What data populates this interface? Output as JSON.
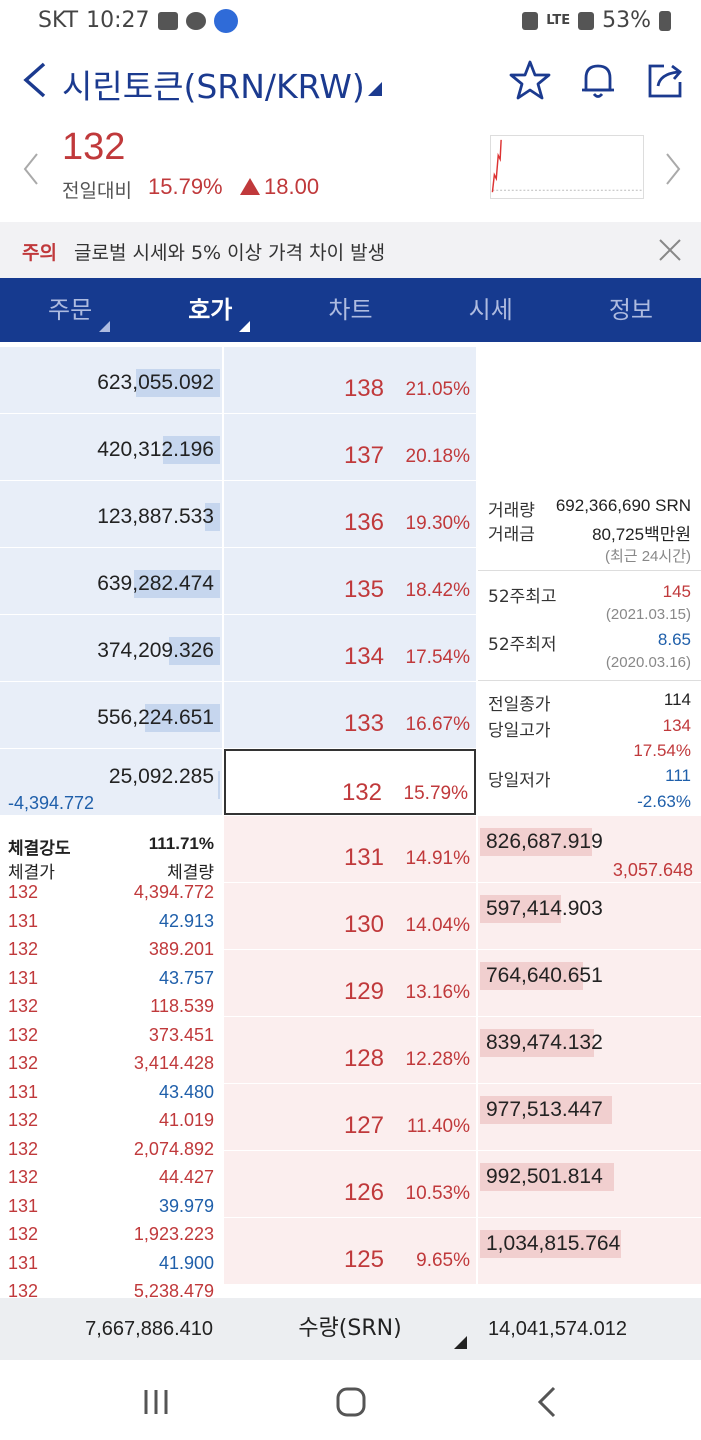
{
  "status_bar": {
    "carrier": "SKT",
    "time": "10:27",
    "network": "LTE",
    "battery": "53%"
  },
  "header": {
    "title": "시린토큰(SRN/KRW)"
  },
  "summary": {
    "price": "132",
    "prev_label": "전일대비",
    "change_pct": "15.79%",
    "change_abs": "18.00"
  },
  "warning": {
    "tag": "주의",
    "text": "글로벌 시세와 5% 이상 가격 차이 발생"
  },
  "tabs": [
    {
      "label": "주문"
    },
    {
      "label": "호가"
    },
    {
      "label": "차트"
    },
    {
      "label": "시세"
    },
    {
      "label": "정보"
    }
  ],
  "asks": [
    {
      "volume": "623,055.092",
      "price": "138",
      "pct": "21.05%",
      "bar": 0.38
    },
    {
      "volume": "420,312.196",
      "price": "137",
      "pct": "20.18%",
      "bar": 0.26
    },
    {
      "volume": "123,887.533",
      "price": "136",
      "pct": "19.30%",
      "bar": 0.07
    },
    {
      "volume": "639,282.474",
      "price": "135",
      "pct": "18.42%",
      "bar": 0.39
    },
    {
      "volume": "374,209.326",
      "price": "134",
      "pct": "17.54%",
      "bar": 0.23
    },
    {
      "volume": "556,224.651",
      "price": "133",
      "pct": "16.67%",
      "bar": 0.34
    },
    {
      "volume": "25,092.285",
      "price": "132",
      "pct": "15.79%",
      "bar": 0.01,
      "change": "-4,394.772"
    }
  ],
  "bids": [
    {
      "volume": "826,687.919",
      "price": "131",
      "pct": "14.91%",
      "bar": 0.51,
      "change": "3,057.648"
    },
    {
      "volume": "597,414.903",
      "price": "130",
      "pct": "14.04%",
      "bar": 0.37
    },
    {
      "volume": "764,640.651",
      "price": "129",
      "pct": "13.16%",
      "bar": 0.47
    },
    {
      "volume": "839,474.132",
      "price": "128",
      "pct": "12.28%",
      "bar": 0.52
    },
    {
      "volume": "977,513.447",
      "price": "127",
      "pct": "11.40%",
      "bar": 0.6
    },
    {
      "volume": "992,501.814",
      "price": "126",
      "pct": "10.53%",
      "bar": 0.61
    },
    {
      "volume": "1,034,815.764",
      "price": "125",
      "pct": "9.65%",
      "bar": 0.64
    }
  ],
  "info": {
    "volume_label": "거래량",
    "volume_value": "692,366,690 SRN",
    "amount_label": "거래금",
    "amount_value": "80,725백만원",
    "period_note": "(최근 24시간)",
    "high52_label": "52주최고",
    "high52_value": "145",
    "high52_date": "(2021.03.15)",
    "low52_label": "52주최저",
    "low52_value": "8.65",
    "low52_date": "(2020.03.16)",
    "prev_close_label": "전일종가",
    "prev_close_value": "114",
    "day_high_label": "당일고가",
    "day_high_value": "134",
    "day_high_pct": "17.54%",
    "day_low_label": "당일저가",
    "day_low_value": "111",
    "day_low_pct": "-2.63%"
  },
  "trades": {
    "strength_label": "체결강도",
    "strength_value": "111.71%",
    "price_header": "체결가",
    "qty_header": "체결량",
    "rows": [
      {
        "price": "132",
        "qty": "4,394.772",
        "side": "buy"
      },
      {
        "price": "131",
        "qty": "42.913",
        "side": "sell"
      },
      {
        "price": "132",
        "qty": "389.201",
        "side": "buy"
      },
      {
        "price": "131",
        "qty": "43.757",
        "side": "sell"
      },
      {
        "price": "132",
        "qty": "118.539",
        "side": "buy"
      },
      {
        "price": "132",
        "qty": "373.451",
        "side": "buy"
      },
      {
        "price": "132",
        "qty": "3,414.428",
        "side": "buy"
      },
      {
        "price": "131",
        "qty": "43.480",
        "side": "sell"
      },
      {
        "price": "132",
        "qty": "41.019",
        "side": "buy"
      },
      {
        "price": "132",
        "qty": "2,074.892",
        "side": "buy"
      },
      {
        "price": "132",
        "qty": "44.427",
        "side": "buy"
      },
      {
        "price": "131",
        "qty": "39.979",
        "side": "sell"
      },
      {
        "price": "132",
        "qty": "1,923.223",
        "side": "buy"
      },
      {
        "price": "131",
        "qty": "41.900",
        "side": "sell"
      },
      {
        "price": "132",
        "qty": "5,238.479",
        "side": "buy"
      }
    ]
  },
  "totals": {
    "ask_total": "7,667,886.410",
    "qty_label": "수량(SRN)",
    "bid_total": "14,041,574.012"
  },
  "colors": {
    "up": "#c0393b",
    "down": "#1f5faa",
    "tab_bg": "#163a8f",
    "ask_bg": "#e8eef8",
    "bid_bg": "#fbeeee"
  }
}
